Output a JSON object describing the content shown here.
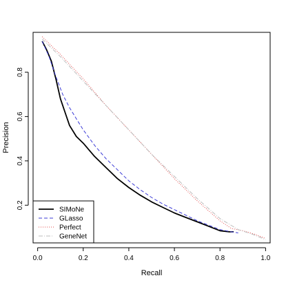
{
  "chart_data": {
    "type": "line",
    "title": "",
    "xlabel": "Recall",
    "ylabel": "Precision",
    "xlim": [
      -0.02,
      1.02
    ],
    "ylim": [
      0.03,
      0.98
    ],
    "x_ticks": [
      0.0,
      0.2,
      0.4,
      0.6,
      0.8,
      1.0
    ],
    "x_tick_labels": [
      "0.0",
      "0.2",
      "0.4",
      "0.6",
      "0.8",
      "1.0"
    ],
    "y_ticks": [
      0.2,
      0.4,
      0.6,
      0.8
    ],
    "y_tick_labels": [
      "0.2",
      "0.4",
      "0.6",
      "0.8"
    ],
    "grid": false,
    "legend_position": "bottom-left",
    "series": [
      {
        "name": "SIMoNe",
        "color": "#000000",
        "dash": "solid",
        "points": [
          [
            0.02,
            0.94
          ],
          [
            0.04,
            0.9
          ],
          [
            0.06,
            0.85
          ],
          [
            0.08,
            0.77
          ],
          [
            0.1,
            0.68
          ],
          [
            0.12,
            0.62
          ],
          [
            0.14,
            0.56
          ],
          [
            0.17,
            0.51
          ],
          [
            0.2,
            0.48
          ],
          [
            0.25,
            0.42
          ],
          [
            0.3,
            0.37
          ],
          [
            0.35,
            0.32
          ],
          [
            0.4,
            0.28
          ],
          [
            0.45,
            0.245
          ],
          [
            0.5,
            0.215
          ],
          [
            0.55,
            0.19
          ],
          [
            0.6,
            0.165
          ],
          [
            0.65,
            0.145
          ],
          [
            0.7,
            0.125
          ],
          [
            0.75,
            0.105
          ],
          [
            0.8,
            0.085
          ],
          [
            0.84,
            0.08
          ],
          [
            0.86,
            0.08
          ]
        ]
      },
      {
        "name": "GLasso",
        "color": "#3b3bd6",
        "dash": "dashed",
        "points": [
          [
            0.02,
            0.94
          ],
          [
            0.05,
            0.87
          ],
          [
            0.08,
            0.78
          ],
          [
            0.11,
            0.7
          ],
          [
            0.14,
            0.64
          ],
          [
            0.17,
            0.59
          ],
          [
            0.2,
            0.54
          ],
          [
            0.25,
            0.47
          ],
          [
            0.3,
            0.41
          ],
          [
            0.35,
            0.36
          ],
          [
            0.4,
            0.31
          ],
          [
            0.45,
            0.27
          ],
          [
            0.5,
            0.235
          ],
          [
            0.55,
            0.205
          ],
          [
            0.6,
            0.18
          ],
          [
            0.65,
            0.155
          ],
          [
            0.7,
            0.13
          ],
          [
            0.75,
            0.11
          ],
          [
            0.8,
            0.09
          ],
          [
            0.85,
            0.08
          ],
          [
            0.88,
            0.075
          ]
        ]
      },
      {
        "name": "Perfect",
        "color": "#e24a4a",
        "dash": "dotted",
        "points": [
          [
            0.02,
            0.96
          ],
          [
            0.1,
            0.88
          ],
          [
            0.2,
            0.77
          ],
          [
            0.3,
            0.65
          ],
          [
            0.4,
            0.54
          ],
          [
            0.5,
            0.43
          ],
          [
            0.6,
            0.32
          ],
          [
            0.7,
            0.22
          ],
          [
            0.8,
            0.13
          ],
          [
            0.85,
            0.095
          ],
          [
            0.9,
            0.085
          ],
          [
            0.95,
            0.07
          ],
          [
            1.0,
            0.05
          ]
        ]
      },
      {
        "name": "GeneNet",
        "color": "#bdbdbd",
        "dash": "dashdot",
        "points": [
          [
            0.02,
            0.95
          ],
          [
            0.1,
            0.87
          ],
          [
            0.2,
            0.76
          ],
          [
            0.3,
            0.65
          ],
          [
            0.4,
            0.54
          ],
          [
            0.5,
            0.43
          ],
          [
            0.6,
            0.33
          ],
          [
            0.7,
            0.23
          ],
          [
            0.8,
            0.14
          ],
          [
            0.88,
            0.09
          ],
          [
            0.94,
            0.07
          ],
          [
            1.0,
            0.045
          ]
        ]
      }
    ]
  }
}
